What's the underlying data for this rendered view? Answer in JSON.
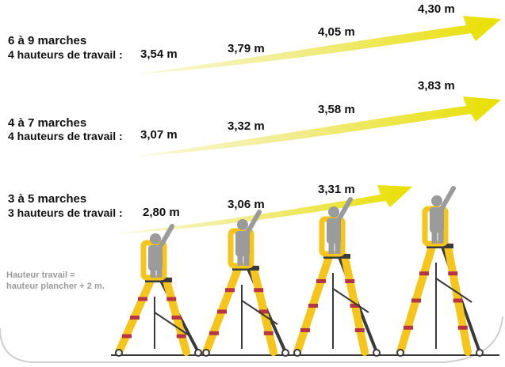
{
  "groups": [
    {
      "title": "6 à 9 marches",
      "subtitle": "4 hauteurs de travail :",
      "heights": [
        "3,54 m",
        "3,79 m",
        "4,05 m",
        "4,30 m"
      ]
    },
    {
      "title": "4 à 7 marches",
      "subtitle": "4 hauteurs de travail :",
      "heights": [
        "3,07 m",
        "3,32 m",
        "3,58 m",
        "3,83 m"
      ]
    },
    {
      "title": "3 à 5 marches",
      "subtitle": "3 hauteurs de travail :",
      "heights": [
        "2,80 m",
        "3,06 m",
        "3,31 m"
      ]
    }
  ],
  "note": {
    "line1": "Hauteur travail =",
    "line2": "hauteur plancher + 2 m."
  },
  "colors": {
    "arrow_light": "#f6f3b0",
    "arrow_mid": "#eee85a",
    "arrow_strong": "#e9e000",
    "ladder_yellow": "#f5c51c",
    "ladder_dark": "#3a3a3a",
    "ladder_red": "#b8343e",
    "person": "#9b9b9b",
    "frame": "#d0d0d0"
  }
}
